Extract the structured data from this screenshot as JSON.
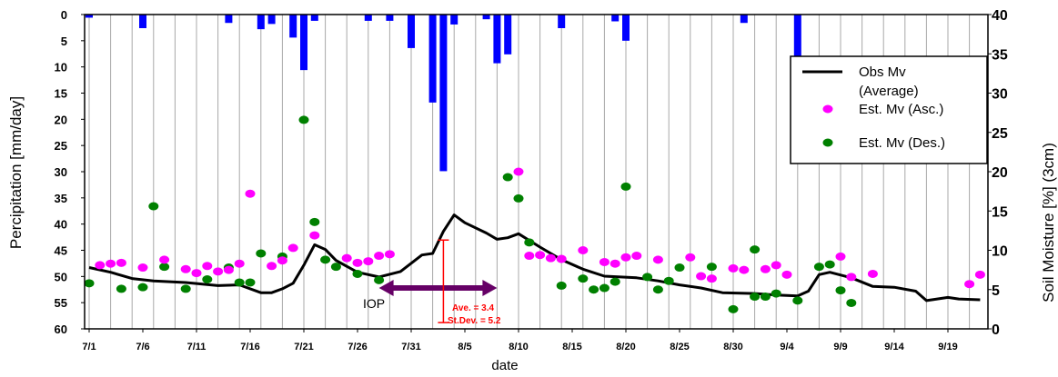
{
  "chart_data": {
    "type": "bar+line+scatter",
    "title": "",
    "xlabel": "date",
    "ylabel_left": "Percipitation [mm/day]",
    "ylabel_right": "Soil Moisture [%] (3cm)",
    "x_ticks": [
      "7/1",
      "7/6",
      "7/11",
      "7/16",
      "7/21",
      "7/26",
      "7/31",
      "8/5",
      "8/10",
      "8/15",
      "8/20",
      "8/25",
      "8/30",
      "9/4",
      "9/9",
      "9/14",
      "9/19"
    ],
    "x_start": "7/1",
    "x_end": "9/22",
    "ylim_left": [
      0,
      60
    ],
    "ylim_left_inverted": true,
    "yticks_left": [
      0,
      5,
      10,
      15,
      20,
      25,
      30,
      35,
      40,
      45,
      50,
      55,
      60
    ],
    "ylim_right": [
      0,
      40
    ],
    "yticks_right": [
      0,
      5,
      10,
      15,
      20,
      25,
      30,
      35,
      40
    ],
    "legend": {
      "placement": "right",
      "entries": [
        "Obs Mv (Average)",
        "Est. Mv (Asc.)",
        "Est. Mv (Des.)"
      ]
    },
    "annotations": {
      "iop_label": "IOP",
      "iop_span": [
        "7/28",
        "8/8"
      ],
      "ave": "Ave.       = 3.4",
      "stdev": "St.Dev. = 5.2",
      "error_bar_x": "8/3",
      "error_bar_range": [
        0.8,
        11.3
      ]
    },
    "colors": {
      "bars": "#0000ff",
      "obs": "#000000",
      "asc": "#ff00ff",
      "des": "#008000",
      "iop_arrow": "#660066",
      "annotation": "#ff0000"
    },
    "precipitation": [
      {
        "x": "7/1",
        "y": 0.6
      },
      {
        "x": "7/6",
        "y": 2.6
      },
      {
        "x": "7/14",
        "y": 1.6
      },
      {
        "x": "7/17",
        "y": 2.8
      },
      {
        "x": "7/18",
        "y": 1.8
      },
      {
        "x": "7/20",
        "y": 4.4
      },
      {
        "x": "7/21",
        "y": 10.6
      },
      {
        "x": "7/22",
        "y": 1.2
      },
      {
        "x": "7/27",
        "y": 1.2
      },
      {
        "x": "7/29",
        "y": 1.2
      },
      {
        "x": "7/31",
        "y": 6.4
      },
      {
        "x": "8/2",
        "y": 16.8
      },
      {
        "x": "8/3",
        "y": 29.9
      },
      {
        "x": "8/4",
        "y": 1.9
      },
      {
        "x": "8/7",
        "y": 0.9
      },
      {
        "x": "8/8",
        "y": 9.3
      },
      {
        "x": "8/9",
        "y": 7.6
      },
      {
        "x": "8/14",
        "y": 2.6
      },
      {
        "x": "8/19",
        "y": 1.3
      },
      {
        "x": "8/20",
        "y": 5.0
      },
      {
        "x": "8/31",
        "y": 1.6
      },
      {
        "x": "9/5",
        "y": 9.8
      }
    ],
    "obs_mv": [
      {
        "x": "7/1",
        "y": 7.8
      },
      {
        "x": "7/3",
        "y": 7.2
      },
      {
        "x": "7/5",
        "y": 6.4
      },
      {
        "x": "7/7",
        "y": 6.1
      },
      {
        "x": "7/10",
        "y": 5.9
      },
      {
        "x": "7/13",
        "y": 5.5
      },
      {
        "x": "7/15",
        "y": 5.6
      },
      {
        "x": "7/17",
        "y": 4.6
      },
      {
        "x": "7/18",
        "y": 4.6
      },
      {
        "x": "7/19",
        "y": 5.1
      },
      {
        "x": "7/20",
        "y": 5.8
      },
      {
        "x": "7/21",
        "y": 8.1
      },
      {
        "x": "7/22",
        "y": 10.7
      },
      {
        "x": "7/23",
        "y": 10.1
      },
      {
        "x": "7/24",
        "y": 8.7
      },
      {
        "x": "7/26",
        "y": 7.2
      },
      {
        "x": "7/28",
        "y": 6.6
      },
      {
        "x": "7/30",
        "y": 7.3
      },
      {
        "x": "8/1",
        "y": 9.4
      },
      {
        "x": "8/2",
        "y": 9.6
      },
      {
        "x": "8/3",
        "y": 12.4
      },
      {
        "x": "8/4",
        "y": 14.5
      },
      {
        "x": "8/5",
        "y": 13.5
      },
      {
        "x": "8/7",
        "y": 12.2
      },
      {
        "x": "8/8",
        "y": 11.4
      },
      {
        "x": "8/9",
        "y": 11.6
      },
      {
        "x": "8/10",
        "y": 12.1
      },
      {
        "x": "8/12",
        "y": 10.4
      },
      {
        "x": "8/14",
        "y": 8.8
      },
      {
        "x": "8/16",
        "y": 7.6
      },
      {
        "x": "8/18",
        "y": 6.7
      },
      {
        "x": "8/21",
        "y": 6.5
      },
      {
        "x": "8/23",
        "y": 6.1
      },
      {
        "x": "8/25",
        "y": 5.6
      },
      {
        "x": "8/27",
        "y": 5.2
      },
      {
        "x": "8/29",
        "y": 4.6
      },
      {
        "x": "9/1",
        "y": 4.5
      },
      {
        "x": "9/3",
        "y": 4.3
      },
      {
        "x": "9/5",
        "y": 4.2
      },
      {
        "x": "9/6",
        "y": 4.8
      },
      {
        "x": "9/7",
        "y": 6.9
      },
      {
        "x": "9/8",
        "y": 7.2
      },
      {
        "x": "9/10",
        "y": 6.5
      },
      {
        "x": "9/12",
        "y": 5.4
      },
      {
        "x": "9/14",
        "y": 5.3
      },
      {
        "x": "9/16",
        "y": 4.8
      },
      {
        "x": "9/17",
        "y": 3.6
      },
      {
        "x": "9/19",
        "y": 4.0
      },
      {
        "x": "9/20",
        "y": 3.8
      },
      {
        "x": "9/22",
        "y": 3.7
      }
    ],
    "est_mv_asc": [
      {
        "x": "7/2",
        "y": 8.1
      },
      {
        "x": "7/3",
        "y": 8.3
      },
      {
        "x": "7/4",
        "y": 8.4
      },
      {
        "x": "7/6",
        "y": 7.8
      },
      {
        "x": "7/8",
        "y": 8.8
      },
      {
        "x": "7/10",
        "y": 7.6
      },
      {
        "x": "7/11",
        "y": 7.1
      },
      {
        "x": "7/12",
        "y": 8.0
      },
      {
        "x": "7/13",
        "y": 7.3
      },
      {
        "x": "7/14",
        "y": 7.5
      },
      {
        "x": "7/15",
        "y": 8.3
      },
      {
        "x": "7/16",
        "y": 17.2
      },
      {
        "x": "7/18",
        "y": 8.0
      },
      {
        "x": "7/19",
        "y": 8.7
      },
      {
        "x": "7/20",
        "y": 10.3
      },
      {
        "x": "7/22",
        "y": 11.9
      },
      {
        "x": "7/25",
        "y": 9.0
      },
      {
        "x": "7/26",
        "y": 8.4
      },
      {
        "x": "7/27",
        "y": 8.6
      },
      {
        "x": "7/28",
        "y": 9.3
      },
      {
        "x": "7/29",
        "y": 9.5
      },
      {
        "x": "8/10",
        "y": 20.0
      },
      {
        "x": "8/11",
        "y": 9.3
      },
      {
        "x": "8/12",
        "y": 9.4
      },
      {
        "x": "8/13",
        "y": 9.0
      },
      {
        "x": "8/14",
        "y": 8.9
      },
      {
        "x": "8/16",
        "y": 10.0
      },
      {
        "x": "8/18",
        "y": 8.5
      },
      {
        "x": "8/19",
        "y": 8.3
      },
      {
        "x": "8/20",
        "y": 9.1
      },
      {
        "x": "8/21",
        "y": 9.3
      },
      {
        "x": "8/23",
        "y": 8.8
      },
      {
        "x": "8/26",
        "y": 9.1
      },
      {
        "x": "8/27",
        "y": 6.7
      },
      {
        "x": "8/28",
        "y": 6.4
      },
      {
        "x": "8/30",
        "y": 7.7
      },
      {
        "x": "8/31",
        "y": 7.5
      },
      {
        "x": "9/2",
        "y": 7.6
      },
      {
        "x": "9/3",
        "y": 8.1
      },
      {
        "x": "9/4",
        "y": 6.9
      },
      {
        "x": "9/9",
        "y": 9.2
      },
      {
        "x": "9/10",
        "y": 6.6
      },
      {
        "x": "9/12",
        "y": 7.0
      },
      {
        "x": "9/21",
        "y": 5.7
      },
      {
        "x": "9/22",
        "y": 6.9
      }
    ],
    "est_mv_des": [
      {
        "x": "7/1",
        "y": 5.8
      },
      {
        "x": "7/4",
        "y": 5.1
      },
      {
        "x": "7/6",
        "y": 5.3
      },
      {
        "x": "7/7",
        "y": 15.6
      },
      {
        "x": "7/8",
        "y": 7.9
      },
      {
        "x": "7/10",
        "y": 5.1
      },
      {
        "x": "7/12",
        "y": 6.3
      },
      {
        "x": "7/14",
        "y": 7.8
      },
      {
        "x": "7/15",
        "y": 5.9
      },
      {
        "x": "7/16",
        "y": 5.9
      },
      {
        "x": "7/17",
        "y": 9.6
      },
      {
        "x": "7/19",
        "y": 9.2
      },
      {
        "x": "7/21",
        "y": 26.6
      },
      {
        "x": "7/22",
        "y": 13.6
      },
      {
        "x": "7/23",
        "y": 8.8
      },
      {
        "x": "7/24",
        "y": 7.9
      },
      {
        "x": "7/26",
        "y": 7.0
      },
      {
        "x": "7/28",
        "y": 6.2
      },
      {
        "x": "8/9",
        "y": 19.3
      },
      {
        "x": "8/10",
        "y": 16.6
      },
      {
        "x": "8/11",
        "y": 11.0
      },
      {
        "x": "8/14",
        "y": 5.5
      },
      {
        "x": "8/16",
        "y": 6.4
      },
      {
        "x": "8/17",
        "y": 5.0
      },
      {
        "x": "8/18",
        "y": 5.2
      },
      {
        "x": "8/19",
        "y": 6.0
      },
      {
        "x": "8/20",
        "y": 18.1
      },
      {
        "x": "8/22",
        "y": 6.6
      },
      {
        "x": "8/23",
        "y": 5.0
      },
      {
        "x": "8/24",
        "y": 6.1
      },
      {
        "x": "8/25",
        "y": 7.8
      },
      {
        "x": "8/28",
        "y": 7.9
      },
      {
        "x": "8/30",
        "y": 2.5
      },
      {
        "x": "9/1",
        "y": 10.1
      },
      {
        "x": "9/1",
        "y": 4.1
      },
      {
        "x": "9/2",
        "y": 4.1
      },
      {
        "x": "9/3",
        "y": 4.5
      },
      {
        "x": "9/5",
        "y": 3.6
      },
      {
        "x": "9/7",
        "y": 7.9
      },
      {
        "x": "9/8",
        "y": 8.2
      },
      {
        "x": "9/9",
        "y": 4.9
      },
      {
        "x": "9/10",
        "y": 3.3
      }
    ]
  }
}
